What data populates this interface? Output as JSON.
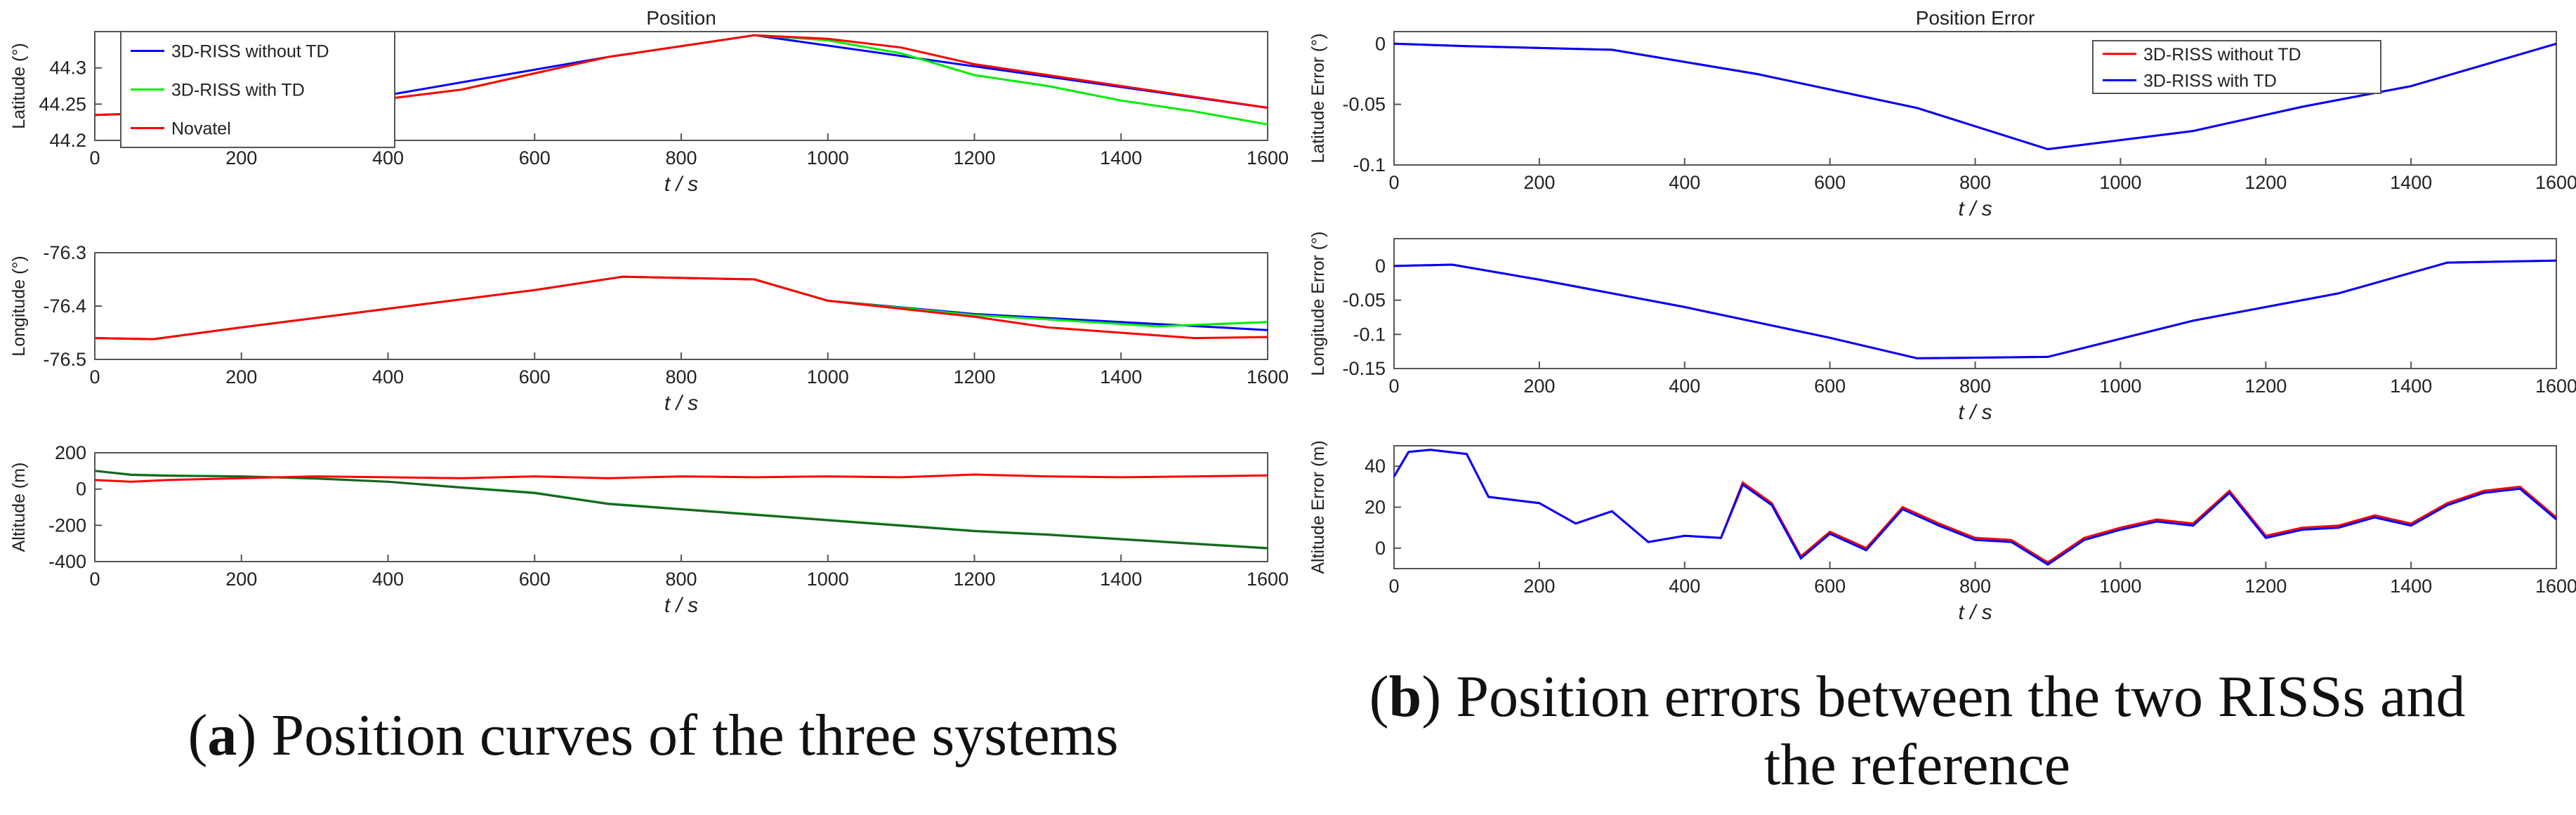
{
  "captions": {
    "a_letter": "a",
    "a_text": "Position curves of the three systems",
    "b_letter": "b",
    "b_line1": "Position errors between the two RISSs and",
    "b_line2": "the reference"
  },
  "colors": {
    "blue": "#0000ff",
    "green": "#00ee00",
    "red": "#ff0000",
    "darkgreen": "#1f5f2a"
  },
  "chart_data": [
    {
      "type": "line",
      "title": "Position",
      "xlabel": "t / s",
      "ylabel": "Latitude (°)",
      "xlim": [
        0,
        1600
      ],
      "ylim": [
        44.2,
        44.35
      ],
      "xticks": [
        "0",
        "200",
        "400",
        "600",
        "800",
        "1000",
        "1200",
        "1400",
        "1600"
      ],
      "yticks": [
        "44.2",
        "44.25",
        "44.3"
      ],
      "ytick_values": [
        44.2,
        44.25,
        44.3
      ],
      "legend": [
        "3D-RISS without TD",
        "3D-RISS with TD",
        "Novatel"
      ],
      "series": [
        {
          "name": "3D-RISS without TD",
          "color": "#0000ff",
          "x": [
            0,
            300,
            700,
            900,
            1600
          ],
          "y": [
            44.235,
            44.245,
            44.315,
            44.345,
            44.245
          ]
        },
        {
          "name": "3D-RISS with TD",
          "color": "#00ee00",
          "x": [
            0,
            100,
            300,
            500,
            700,
            900,
            1000,
            1100,
            1200,
            1300,
            1400,
            1500,
            1600
          ],
          "y": [
            44.235,
            44.238,
            44.245,
            44.27,
            44.315,
            44.345,
            44.338,
            44.32,
            44.29,
            44.275,
            44.255,
            44.24,
            44.222
          ]
        },
        {
          "name": "Novatel",
          "color": "#ff0000",
          "x": [
            0,
            100,
            300,
            500,
            700,
            900,
            1000,
            1100,
            1200,
            1300,
            1400,
            1500,
            1600
          ],
          "y": [
            44.235,
            44.238,
            44.245,
            44.27,
            44.315,
            44.345,
            44.34,
            44.328,
            44.305,
            44.29,
            44.275,
            44.26,
            44.245
          ]
        }
      ]
    },
    {
      "type": "line",
      "title": "",
      "xlabel": "t / s",
      "ylabel": "Longitude (°)",
      "xlim": [
        0,
        1600
      ],
      "ylim": [
        -76.5,
        -76.3
      ],
      "xticks": [
        "0",
        "200",
        "400",
        "600",
        "800",
        "1000",
        "1200",
        "1400",
        "1600"
      ],
      "yticks": [
        "-76.5",
        "-76.4",
        "-76.3"
      ],
      "ytick_values": [
        -76.5,
        -76.4,
        -76.3
      ],
      "series": [
        {
          "name": "3D-RISS without TD",
          "color": "#0000ff",
          "x": [
            0,
            80,
            200,
            400,
            600,
            720,
            900,
            1000,
            1200,
            1400,
            1600
          ],
          "y": [
            -76.46,
            -76.462,
            -76.44,
            -76.405,
            -76.37,
            -76.345,
            -76.35,
            -76.39,
            -76.415,
            -76.43,
            -76.445
          ]
        },
        {
          "name": "3D-RISS with TD",
          "color": "#00ee00",
          "x": [
            0,
            80,
            200,
            400,
            600,
            720,
            900,
            1000,
            1200,
            1300,
            1450,
            1600
          ],
          "y": [
            -76.46,
            -76.462,
            -76.44,
            -76.405,
            -76.37,
            -76.345,
            -76.35,
            -76.39,
            -76.417,
            -76.425,
            -76.438,
            -76.43
          ]
        },
        {
          "name": "Novatel",
          "color": "#ff0000",
          "x": [
            0,
            80,
            200,
            400,
            600,
            720,
            900,
            1000,
            1200,
            1300,
            1400,
            1500,
            1600
          ],
          "y": [
            -76.46,
            -76.462,
            -76.44,
            -76.405,
            -76.37,
            -76.345,
            -76.35,
            -76.39,
            -76.42,
            -76.44,
            -76.45,
            -76.46,
            -76.458
          ]
        }
      ]
    },
    {
      "type": "line",
      "title": "",
      "xlabel": "t / s",
      "ylabel": "Altitude (m)",
      "xlim": [
        0,
        1600
      ],
      "ylim": [
        -400,
        200
      ],
      "xticks": [
        "0",
        "200",
        "400",
        "600",
        "800",
        "1000",
        "1200",
        "1400",
        "1600"
      ],
      "yticks": [
        "-400",
        "-200",
        "0",
        "200"
      ],
      "ytick_values": [
        -400,
        -200,
        0,
        200
      ],
      "series": [
        {
          "name": "3D-RISS with TD",
          "color": "#00ee00",
          "x": [
            0,
            50,
            100,
            200,
            300,
            400,
            500,
            600,
            700,
            800,
            900,
            1000,
            1100,
            1200,
            1300,
            1400,
            1500,
            1600
          ],
          "y": [
            100,
            80,
            75,
            70,
            60,
            40,
            10,
            -20,
            -80,
            -110,
            -140,
            -170,
            -200,
            -230,
            -250,
            -275,
            -300,
            -325
          ]
        },
        {
          "name": "3D-RISS without TD",
          "color": "#1f5f2a",
          "x": [
            0,
            50,
            100,
            200,
            300,
            400,
            500,
            600,
            700,
            800,
            900,
            1000,
            1100,
            1200,
            1300,
            1400,
            1500,
            1600
          ],
          "y": [
            100,
            78,
            73,
            70,
            58,
            40,
            8,
            -22,
            -82,
            -112,
            -142,
            -172,
            -202,
            -232,
            -252,
            -277,
            -302,
            -327
          ]
        },
        {
          "name": "Novatel",
          "color": "#ff0000",
          "x": [
            0,
            50,
            100,
            200,
            300,
            400,
            500,
            600,
            700,
            800,
            900,
            1000,
            1100,
            1200,
            1300,
            1400,
            1500,
            1600
          ],
          "y": [
            50,
            40,
            50,
            60,
            70,
            65,
            60,
            70,
            60,
            70,
            65,
            70,
            65,
            80,
            70,
            65,
            70,
            75
          ]
        }
      ]
    },
    {
      "type": "line",
      "title": "Position Error",
      "xlabel": "t / s",
      "ylabel": "Latitude Error (°)",
      "xlim": [
        0,
        1600
      ],
      "ylim": [
        -0.1,
        0.01
      ],
      "xticks": [
        "0",
        "200",
        "400",
        "600",
        "800",
        "1000",
        "1200",
        "1400",
        "1600"
      ],
      "yticks": [
        "-0.1",
        "-0.05",
        "0"
      ],
      "ytick_values": [
        -0.1,
        -0.05,
        0
      ],
      "legend": [
        "3D-RISS without TD",
        "3D-RISS with TD"
      ],
      "series": [
        {
          "name": "3D-RISS without TD",
          "color": "#ff0000",
          "x": [
            0,
            100,
            300,
            500,
            720,
            900,
            1100,
            1250,
            1400,
            1600
          ],
          "y": [
            0,
            -0.002,
            -0.005,
            -0.025,
            -0.053,
            -0.087,
            -0.072,
            -0.052,
            -0.035,
            0
          ]
        },
        {
          "name": "3D-RISS with TD",
          "color": "#0000ff",
          "x": [
            0,
            100,
            300,
            500,
            720,
            900,
            1100,
            1250,
            1400,
            1600
          ],
          "y": [
            0,
            -0.002,
            -0.005,
            -0.025,
            -0.053,
            -0.087,
            -0.072,
            -0.052,
            -0.035,
            0
          ]
        }
      ]
    },
    {
      "type": "line",
      "title": "",
      "xlabel": "t / s",
      "ylabel": "Longitude Error (°)",
      "xlim": [
        0,
        1600
      ],
      "ylim": [
        -0.15,
        0.04
      ],
      "xticks": [
        "0",
        "200",
        "400",
        "600",
        "800",
        "1000",
        "1200",
        "1400",
        "1600"
      ],
      "yticks": [
        "-0.15",
        "-0.1",
        "-0.05",
        "0"
      ],
      "ytick_values": [
        -0.15,
        -0.1,
        -0.05,
        0
      ],
      "series": [
        {
          "name": "3D-RISS without TD",
          "color": "#ff0000",
          "x": [
            0,
            80,
            200,
            400,
            600,
            720,
            900,
            1100,
            1300,
            1450,
            1600
          ],
          "y": [
            0,
            0.002,
            -0.02,
            -0.06,
            -0.105,
            -0.135,
            -0.133,
            -0.08,
            -0.04,
            0.005,
            0.008
          ]
        },
        {
          "name": "3D-RISS with TD",
          "color": "#0000ff",
          "x": [
            0,
            80,
            200,
            400,
            600,
            720,
            900,
            1100,
            1300,
            1450,
            1600
          ],
          "y": [
            0,
            0.002,
            -0.02,
            -0.06,
            -0.105,
            -0.135,
            -0.133,
            -0.08,
            -0.04,
            0.005,
            0.008
          ]
        }
      ]
    },
    {
      "type": "line",
      "title": "",
      "xlabel": "t / s",
      "ylabel": "Altitude Error (m)",
      "xlim": [
        0,
        1600
      ],
      "ylim": [
        -10,
        50
      ],
      "xticks": [
        "0",
        "200",
        "400",
        "600",
        "800",
        "1000",
        "1200",
        "1400",
        "1600"
      ],
      "yticks": [
        "0",
        "20",
        "40"
      ],
      "ytick_values": [
        0,
        20,
        40
      ],
      "series": [
        {
          "name": "3D-RISS without TD",
          "color": "#ff0000",
          "x": [
            0,
            20,
            50,
            100,
            130,
            200,
            250,
            300,
            350,
            400,
            450,
            480,
            520,
            560,
            600,
            650,
            700,
            750,
            800,
            850,
            900,
            950,
            1000,
            1050,
            1100,
            1150,
            1200,
            1250,
            1300,
            1350,
            1400,
            1450,
            1500,
            1550,
            1600
          ],
          "y": [
            35,
            47,
            48,
            46,
            25,
            22,
            12,
            18,
            3,
            6,
            5,
            32,
            22,
            -4,
            8,
            0,
            20,
            12,
            5,
            4,
            -7,
            5,
            10,
            14,
            12,
            28,
            6,
            10,
            11,
            16,
            12,
            22,
            28,
            30,
            15
          ]
        },
        {
          "name": "3D-RISS with TD",
          "color": "#0000ff",
          "x": [
            0,
            20,
            50,
            100,
            130,
            200,
            250,
            300,
            350,
            400,
            450,
            480,
            520,
            560,
            600,
            650,
            700,
            750,
            800,
            850,
            900,
            950,
            1000,
            1050,
            1100,
            1150,
            1200,
            1250,
            1300,
            1350,
            1400,
            1450,
            1500,
            1550,
            1600
          ],
          "y": [
            35,
            47,
            48,
            46,
            25,
            22,
            12,
            18,
            3,
            6,
            5,
            31,
            21,
            -5,
            7,
            -1,
            19,
            11,
            4,
            3,
            -8,
            4,
            9,
            13,
            11,
            27,
            5,
            9,
            10,
            15,
            11,
            21,
            27,
            29,
            14
          ]
        }
      ]
    }
  ]
}
